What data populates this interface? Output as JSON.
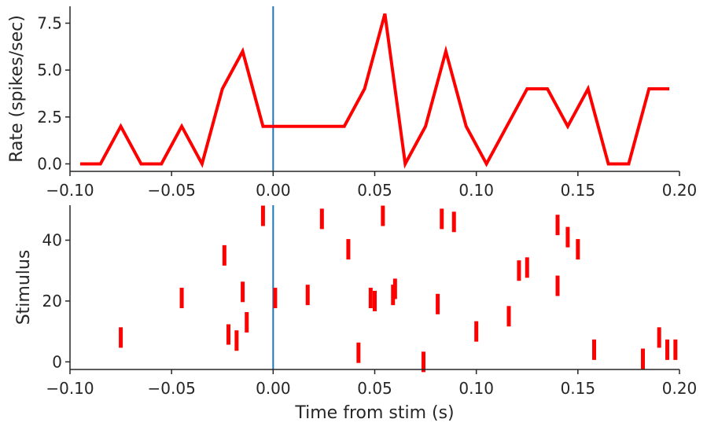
{
  "chart_data": [
    {
      "type": "line",
      "title": "",
      "xlabel": "",
      "ylabel": "Rate (spikes/sec)",
      "xlim": [
        -0.1,
        0.2
      ],
      "ylim": [
        -0.4,
        8.4
      ],
      "xticks": [
        -0.1,
        -0.05,
        0.0,
        0.05,
        0.1,
        0.15,
        0.2
      ],
      "xtick_labels": [
        "−0.10",
        "−0.05",
        "0.00",
        "0.05",
        "0.10",
        "0.15",
        "0.20"
      ],
      "yticks": [
        0.0,
        2.5,
        5.0,
        7.5
      ],
      "ytick_labels": [
        "0.0",
        "2.5",
        "5.0",
        "7.5"
      ],
      "grid": false,
      "stim_line_x": 0.0,
      "stim_line_color": "#1f77b4",
      "series": [
        {
          "name": "rate",
          "color": "#ff0000",
          "x": [
            -0.095,
            -0.085,
            -0.075,
            -0.065,
            -0.055,
            -0.045,
            -0.035,
            -0.025,
            -0.015,
            -0.005,
            0.005,
            0.015,
            0.025,
            0.035,
            0.045,
            0.055,
            0.065,
            0.075,
            0.085,
            0.095,
            0.105,
            0.115,
            0.125,
            0.135,
            0.145,
            0.155,
            0.165,
            0.175,
            0.185,
            0.195
          ],
          "y": [
            0,
            0,
            2,
            0,
            0,
            2,
            0,
            4,
            6,
            2,
            2,
            2,
            2,
            2,
            4,
            8,
            0,
            2,
            6,
            2,
            0,
            2,
            4,
            4,
            2,
            4,
            0,
            0,
            4,
            4
          ]
        }
      ]
    },
    {
      "type": "scatter",
      "title": "",
      "xlabel": "Time from stim (s)",
      "ylabel": "Stimulus",
      "xlim": [
        -0.1,
        0.2
      ],
      "ylim": [
        -2.5,
        51.5
      ],
      "xticks": [
        -0.1,
        -0.05,
        0.0,
        0.05,
        0.1,
        0.15,
        0.2
      ],
      "xtick_labels": [
        "−0.10",
        "−0.05",
        "0.00",
        "0.05",
        "0.10",
        "0.15",
        "0.20"
      ],
      "yticks": [
        0,
        20,
        40
      ],
      "ytick_labels": [
        "0",
        "20",
        "40"
      ],
      "grid": false,
      "marker": "vertical-bar",
      "stim_line_x": 0.0,
      "stim_line_color": "#1f77b4",
      "series": [
        {
          "name": "spikes",
          "color": "#ff0000",
          "points": [
            {
              "x": -0.005,
              "y": 48
            },
            {
              "x": 0.024,
              "y": 47
            },
            {
              "x": 0.054,
              "y": 48
            },
            {
              "x": 0.083,
              "y": 47
            },
            {
              "x": 0.089,
              "y": 46
            },
            {
              "x": 0.14,
              "y": 45
            },
            {
              "x": 0.145,
              "y": 41
            },
            {
              "x": 0.15,
              "y": 37
            },
            {
              "x": 0.037,
              "y": 37
            },
            {
              "x": -0.024,
              "y": 35
            },
            {
              "x": 0.121,
              "y": 30
            },
            {
              "x": 0.125,
              "y": 31
            },
            {
              "x": 0.14,
              "y": 25
            },
            {
              "x": 0.06,
              "y": 24
            },
            {
              "x": 0.059,
              "y": 22
            },
            {
              "x": -0.015,
              "y": 23
            },
            {
              "x": 0.017,
              "y": 22
            },
            {
              "x": 0.001,
              "y": 21
            },
            {
              "x": -0.045,
              "y": 21
            },
            {
              "x": 0.048,
              "y": 21
            },
            {
              "x": 0.05,
              "y": 20
            },
            {
              "x": 0.081,
              "y": 19
            },
            {
              "x": 0.116,
              "y": 15
            },
            {
              "x": -0.013,
              "y": 13
            },
            {
              "x": 0.1,
              "y": 10
            },
            {
              "x": -0.022,
              "y": 9
            },
            {
              "x": -0.018,
              "y": 7
            },
            {
              "x": -0.075,
              "y": 8
            },
            {
              "x": 0.19,
              "y": 8
            },
            {
              "x": 0.042,
              "y": 3
            },
            {
              "x": 0.158,
              "y": 4
            },
            {
              "x": 0.194,
              "y": 4
            },
            {
              "x": 0.198,
              "y": 4
            },
            {
              "x": 0.074,
              "y": 0
            },
            {
              "x": 0.182,
              "y": 1
            }
          ]
        }
      ]
    }
  ]
}
